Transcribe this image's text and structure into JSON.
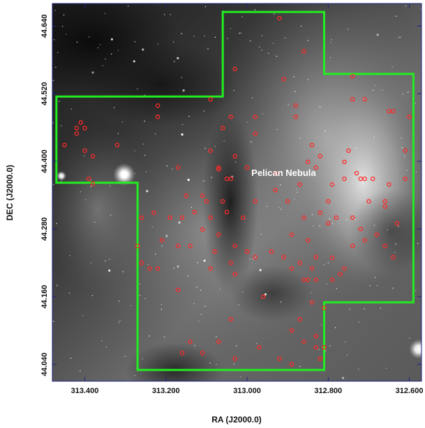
{
  "chart_data": {
    "type": "scatter",
    "title": "",
    "xlabel": "RA (J2000.0)",
    "ylabel": "DEC (J2000.0)",
    "xlim": [
      313.48,
      312.57
    ],
    "ylim": [
      44.01,
      44.68
    ],
    "x_ticks": [
      "313.400",
      "313.200",
      "313.000",
      "312.800",
      "312.600"
    ],
    "x_tick_values": [
      313.4,
      313.2,
      313.0,
      312.8,
      312.6
    ],
    "y_ticks": [
      "44.040",
      "44.160",
      "44.280",
      "44.400",
      "44.520",
      "44.640"
    ],
    "y_tick_values": [
      44.04,
      44.16,
      44.28,
      44.4,
      44.52,
      44.64
    ],
    "grid": false,
    "background": "grayscale optical image of nebula",
    "annotations": [
      {
        "text": "Pelican Nebula",
        "x": 312.91,
        "y": 44.374
      }
    ],
    "footprint": {
      "color": "#22ee22",
      "vertices": [
        [
          313.47,
          44.515
        ],
        [
          313.06,
          44.515
        ],
        [
          313.06,
          44.665
        ],
        [
          312.81,
          44.665
        ],
        [
          312.81,
          44.555
        ],
        [
          312.59,
          44.555
        ],
        [
          312.59,
          44.15
        ],
        [
          312.81,
          44.15
        ],
        [
          312.81,
          44.03
        ],
        [
          313.27,
          44.03
        ],
        [
          313.27,
          44.362
        ],
        [
          313.47,
          44.362
        ]
      ]
    },
    "series": [
      {
        "marker_color": "#ff2a2a",
        "points": [
          [
            312.92,
            44.654
          ],
          [
            312.86,
            44.595
          ],
          [
            313.03,
            44.564
          ],
          [
            312.91,
            44.546
          ],
          [
            312.74,
            44.551
          ],
          [
            312.74,
            44.51
          ],
          [
            312.71,
            44.51
          ],
          [
            313.22,
            44.499
          ],
          [
            313.22,
            44.479
          ],
          [
            313.09,
            44.51
          ],
          [
            313.04,
            44.479
          ],
          [
            313.06,
            44.459
          ],
          [
            312.98,
            44.479
          ],
          [
            312.98,
            44.449
          ],
          [
            312.88,
            44.499
          ],
          [
            312.88,
            44.479
          ],
          [
            312.64,
            44.489
          ],
          [
            312.65,
            44.489
          ],
          [
            312.6,
            44.479
          ],
          [
            313.41,
            44.469
          ],
          [
            313.42,
            44.459
          ],
          [
            313.4,
            44.459
          ],
          [
            313.42,
            44.449
          ],
          [
            313.45,
            44.429
          ],
          [
            313.4,
            44.419
          ],
          [
            313.32,
            44.429
          ],
          [
            313.38,
            44.409
          ],
          [
            313.09,
            44.419
          ],
          [
            313.03,
            44.409
          ],
          [
            312.84,
            44.429
          ],
          [
            312.75,
            44.419
          ],
          [
            312.61,
            44.419
          ],
          [
            313.17,
            44.389
          ],
          [
            313.07,
            44.389
          ],
          [
            313.07,
            44.386
          ],
          [
            313.0,
            44.389
          ],
          [
            312.93,
            44.379
          ],
          [
            312.85,
            44.399
          ],
          [
            312.83,
            44.389
          ],
          [
            312.82,
            44.409
          ],
          [
            312.76,
            44.399
          ],
          [
            312.73,
            44.379
          ],
          [
            312.72,
            44.369
          ],
          [
            312.71,
            44.369
          ],
          [
            313.39,
            44.369
          ],
          [
            313.38,
            44.36
          ],
          [
            313.05,
            44.369
          ],
          [
            313.04,
            44.369
          ],
          [
            312.93,
            44.349
          ],
          [
            312.87,
            44.359
          ],
          [
            312.79,
            44.359
          ],
          [
            312.76,
            44.369
          ],
          [
            312.69,
            44.369
          ],
          [
            312.65,
            44.359
          ],
          [
            312.61,
            44.369
          ],
          [
            313.15,
            44.339
          ],
          [
            313.11,
            44.339
          ],
          [
            313.1,
            44.329
          ],
          [
            313.06,
            44.329
          ],
          [
            312.98,
            44.329
          ],
          [
            312.9,
            44.329
          ],
          [
            312.8,
            44.329
          ],
          [
            312.7,
            44.329
          ],
          [
            312.66,
            44.329
          ],
          [
            312.66,
            44.32
          ],
          [
            313.26,
            44.3
          ],
          [
            313.23,
            44.309
          ],
          [
            313.19,
            44.3
          ],
          [
            313.16,
            44.3
          ],
          [
            313.13,
            44.31
          ],
          [
            313.09,
            44.3
          ],
          [
            313.05,
            44.31
          ],
          [
            313.01,
            44.3
          ],
          [
            312.86,
            44.3
          ],
          [
            312.82,
            44.309
          ],
          [
            312.8,
            44.29
          ],
          [
            312.78,
            44.3
          ],
          [
            312.74,
            44.3
          ],
          [
            312.72,
            44.28
          ],
          [
            312.63,
            44.29
          ],
          [
            313.11,
            44.279
          ],
          [
            313.07,
            44.27
          ],
          [
            312.89,
            44.27
          ],
          [
            312.85,
            44.26
          ],
          [
            313.27,
            44.25
          ],
          [
            313.21,
            44.26
          ],
          [
            313.17,
            44.25
          ],
          [
            313.14,
            44.25
          ],
          [
            313.03,
            44.25
          ],
          [
            313.0,
            44.24
          ],
          [
            312.94,
            44.24
          ],
          [
            312.74,
            44.25
          ],
          [
            312.71,
            44.26
          ],
          [
            312.68,
            44.27
          ],
          [
            312.66,
            44.25
          ],
          [
            313.08,
            44.24
          ],
          [
            313.04,
            44.22
          ],
          [
            312.98,
            44.23
          ],
          [
            312.91,
            44.23
          ],
          [
            312.87,
            44.22
          ],
          [
            312.83,
            44.23
          ],
          [
            312.79,
            44.229
          ],
          [
            312.64,
            44.23
          ],
          [
            313.26,
            44.22
          ],
          [
            313.24,
            44.21
          ],
          [
            313.22,
            44.21
          ],
          [
            313.09,
            44.21
          ],
          [
            313.03,
            44.2
          ],
          [
            312.89,
            44.21
          ],
          [
            312.84,
            44.21
          ],
          [
            312.77,
            44.2
          ],
          [
            312.76,
            44.21
          ],
          [
            312.86,
            44.19
          ],
          [
            312.85,
            44.19
          ],
          [
            312.83,
            44.19
          ],
          [
            312.79,
            44.19
          ],
          [
            313.17,
            44.172
          ],
          [
            312.96,
            44.16
          ],
          [
            312.84,
            44.15
          ],
          [
            312.81,
            44.14
          ],
          [
            313.04,
            44.12
          ],
          [
            312.87,
            44.12
          ],
          [
            312.89,
            44.1
          ],
          [
            312.83,
            44.09
          ],
          [
            313.14,
            44.08
          ],
          [
            313.07,
            44.08
          ],
          [
            312.97,
            44.07
          ],
          [
            312.86,
            44.08
          ],
          [
            312.83,
            44.07
          ],
          [
            312.81,
            44.07
          ],
          [
            312.82,
            44.05
          ],
          [
            313.16,
            44.06
          ],
          [
            313.11,
            44.06
          ],
          [
            313.03,
            44.05
          ],
          [
            312.92,
            44.05
          ],
          [
            312.89,
            44.04
          ]
        ]
      }
    ]
  }
}
